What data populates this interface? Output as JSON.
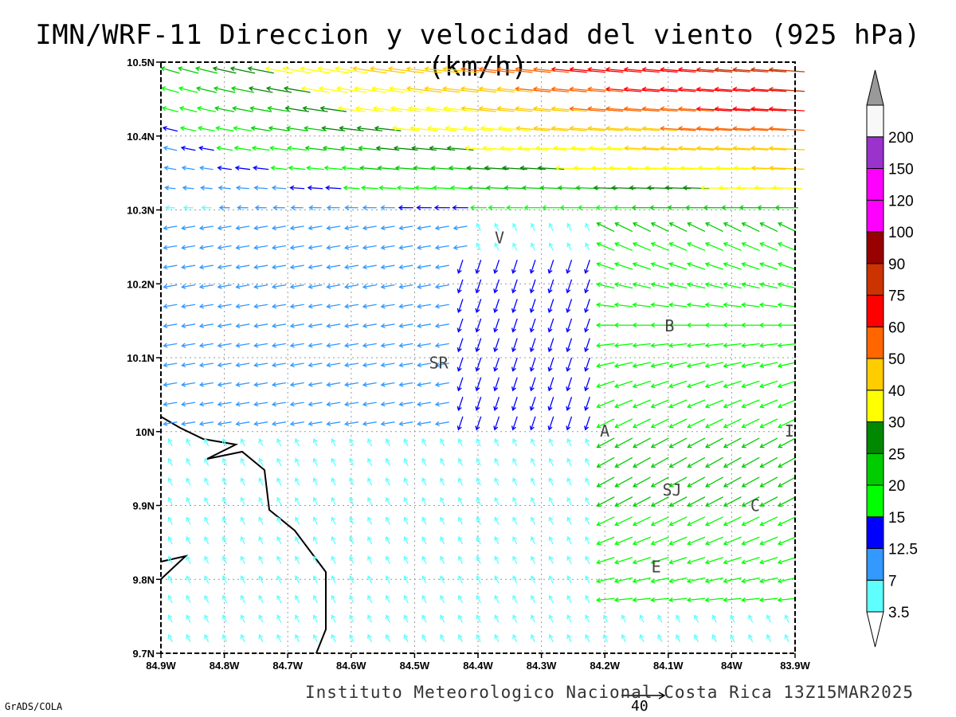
{
  "title": "IMN/WRF-11 Direccion y velocidad del viento (925 hPa)(km/h)",
  "footer": "Instituto Meteorologico Nacional Costa Rica 13Z15MAR2025",
  "credit": "GrADS/COLA",
  "reference_vector_label": "40",
  "map": {
    "lon_range": [
      -84.9,
      -83.9
    ],
    "lat_range": [
      9.7,
      10.5
    ],
    "x_tick_labels": [
      "84.9W",
      "84.8W",
      "84.7W",
      "84.6W",
      "84.5W",
      "84.4W",
      "84.3W",
      "84.2W",
      "84.1W",
      "84W",
      "83.9W"
    ],
    "y_tick_labels": [
      "10.5N",
      "10.4N",
      "10.3N",
      "10.2N",
      "10.1N",
      "10N",
      "9.9N",
      "9.8N",
      "9.7N"
    ],
    "grid": "dotted",
    "site_labels": [
      {
        "text": "V",
        "lon": -84.366,
        "lat": 10.262
      },
      {
        "text": "B",
        "lon": -84.098,
        "lat": 10.143
      },
      {
        "text": "SR",
        "lon": -84.462,
        "lat": 10.093
      },
      {
        "text": "A",
        "lon": -84.2,
        "lat": 10.001
      },
      {
        "text": "I",
        "lon": -83.909,
        "lat": 10.001
      },
      {
        "text": "SJ",
        "lon": -84.094,
        "lat": 9.921
      },
      {
        "text": "C",
        "lon": -83.963,
        "lat": 9.9
      },
      {
        "text": "E",
        "lon": -84.119,
        "lat": 9.817
      }
    ]
  },
  "colorbar": {
    "labels": [
      "3.5",
      "7",
      "12.5",
      "15",
      "20",
      "25",
      "30",
      "40",
      "50",
      "60",
      "75",
      "90",
      "100",
      "120",
      "150",
      "200"
    ],
    "colors": [
      "#60ffff",
      "#3399ff",
      "#0000ff",
      "#00ff00",
      "#00cc00",
      "#008800",
      "#ffff00",
      "#ffcc00",
      "#ff6600",
      "#ff0000",
      "#cc3300",
      "#990000",
      "#ff00ff",
      "#ff00ff",
      "#9933cc",
      "#f8f8f8"
    ],
    "top_cap_color": "#999999"
  }
}
